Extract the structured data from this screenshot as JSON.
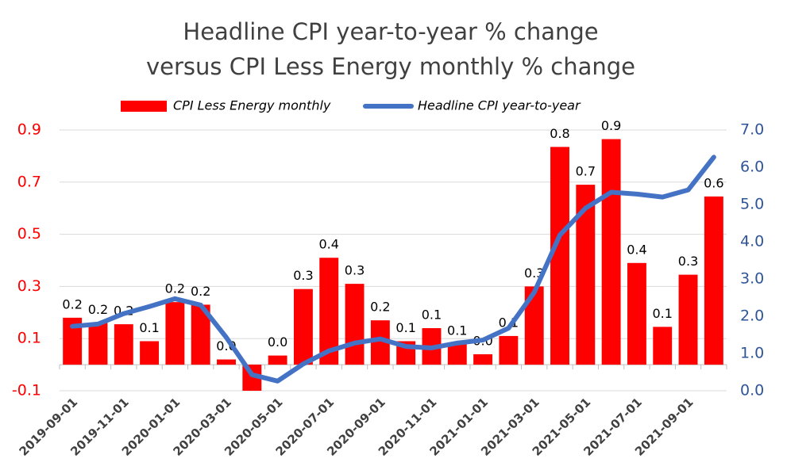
{
  "chart_data": {
    "type": "bar",
    "title": [
      "Headline CPI year-to-year % change",
      "versus CPI Less Energy monthly % change"
    ],
    "categories": [
      "2019-09-01",
      null,
      "2019-11-01",
      null,
      "2020-01-01",
      null,
      "2020-03-01",
      null,
      "2020-05-01",
      null,
      "2020-07-01",
      null,
      "2020-09-01",
      null,
      "2020-11-01",
      null,
      "2021-01-01",
      null,
      "2021-03-01",
      null,
      "2021-05-01",
      null,
      "2021-07-01",
      null,
      "2021-09-01",
      null
    ],
    "series": [
      {
        "name": "CPI Less Energy monthly",
        "color": "#ff0000",
        "values": [
          0.18,
          0.16,
          0.155,
          0.09,
          0.24,
          0.23,
          0.02,
          -0.1,
          0.035,
          0.29,
          0.41,
          0.31,
          0.17,
          0.09,
          0.14,
          0.08,
          0.04,
          0.11,
          0.3,
          0.835,
          0.69,
          0.865,
          0.39,
          0.145,
          0.345,
          0.645
        ],
        "value_labels": [
          "0.2",
          "0.2",
          "0.2",
          "0.1",
          "0.2",
          "0.2",
          "0.0",
          null,
          "0.0",
          "0.3",
          "0.4",
          "0.3",
          "0.2",
          "0.1",
          "0.1",
          "0.1",
          "0.0",
          "0.1",
          "0.3",
          "0.8",
          "0.7",
          "0.9",
          "0.4",
          "0.1",
          "0.3",
          "0.6"
        ]
      },
      {
        "name": "Headline CPI year-to-year",
        "color": "#4472c4",
        "type": "line",
        "axis": "y2",
        "values": [
          1.73,
          1.79,
          2.07,
          2.26,
          2.47,
          2.3,
          1.43,
          0.43,
          0.26,
          0.72,
          1.07,
          1.28,
          1.39,
          1.19,
          1.15,
          1.28,
          1.36,
          1.68,
          2.64,
          4.18,
          4.9,
          5.33,
          5.28,
          5.2,
          5.39,
          6.27
        ]
      }
    ],
    "ylim": [
      -0.1,
      0.9
    ],
    "yticks": [
      -0.1,
      0.1,
      0.3,
      0.5,
      0.7,
      0.9
    ],
    "ytick_color": "#ff0000",
    "y2lim": [
      0,
      7
    ],
    "y2ticks": [
      {
        "value": 0,
        "label": "0.0"
      },
      {
        "value": 1,
        "label": "1.0"
      },
      {
        "value": 2,
        "label": "2.0"
      },
      {
        "value": 3,
        "label": "3.0"
      },
      {
        "value": 4,
        "label": "4.0"
      },
      {
        "value": 5,
        "label": "5.0"
      },
      {
        "value": 6,
        "label": "6.0"
      },
      {
        "value": 7,
        "label": "7.0"
      }
    ],
    "y2tick_color": "#2f5597",
    "grid": true
  }
}
